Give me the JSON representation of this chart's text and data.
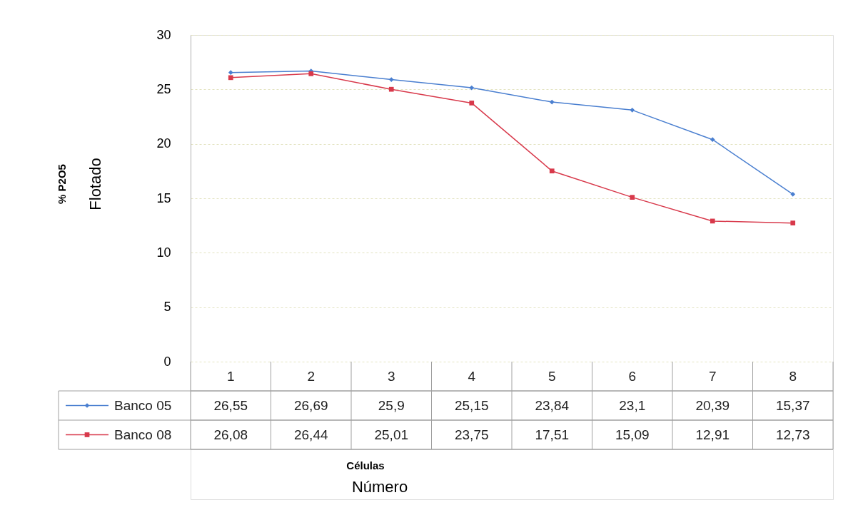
{
  "chart_data": {
    "type": "line",
    "xlabel": "Células\nNúmero",
    "ylabel": "% P2O5\nFlotado",
    "categories": [
      "1",
      "2",
      "3",
      "4",
      "5",
      "6",
      "7",
      "8"
    ],
    "series": [
      {
        "name": "Banco 05",
        "color": "#4a7fd0",
        "marker": "diamond",
        "values": [
          26.55,
          26.69,
          25.9,
          25.15,
          23.84,
          23.1,
          20.39,
          15.37
        ],
        "value_labels": [
          "26,55",
          "26,69",
          "25,9",
          "25,15",
          "23,84",
          "23,1",
          "20,39",
          "15,37"
        ]
      },
      {
        "name": "Banco 08",
        "color": "#d8394b",
        "marker": "square",
        "values": [
          26.08,
          26.44,
          25.01,
          23.75,
          17.51,
          15.09,
          12.91,
          12.73
        ],
        "value_labels": [
          "26,08",
          "26,44",
          "25,01",
          "23,75",
          "17,51",
          "15,09",
          "12,91",
          "12,73"
        ]
      }
    ],
    "ylim": [
      0,
      30
    ],
    "yticks": [
      0,
      5,
      10,
      15,
      20,
      25,
      30
    ],
    "grid": "y",
    "legend": "bottom left",
    "line_style": "solid"
  }
}
